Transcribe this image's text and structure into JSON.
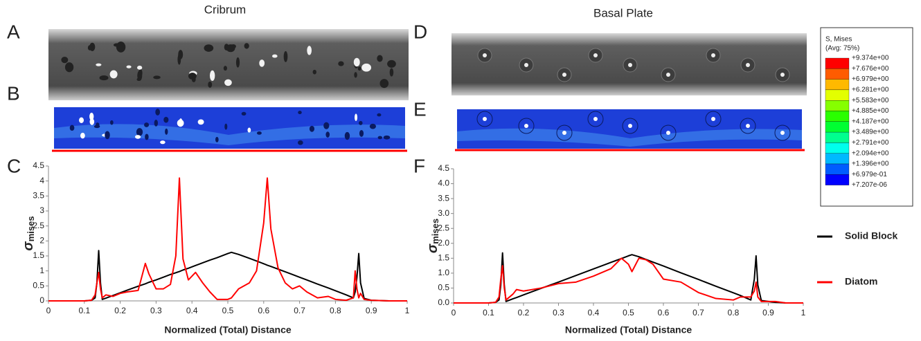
{
  "chart_data": [
    {
      "type": "line",
      "title": "Cribrum",
      "panels": [
        "A",
        "B",
        "C"
      ],
      "xlabel": "Normalized (Total) Distance",
      "ylabel": {
        "symbol": "σ",
        "subscript": "mises"
      },
      "xlim": [
        0,
        1
      ],
      "ylim": [
        0,
        4.5
      ],
      "xticks": [
        0,
        0.1,
        0.2,
        0.3,
        0.4,
        0.5,
        0.6,
        0.7,
        0.8,
        0.9,
        1
      ],
      "yticks": [
        0,
        0.5,
        1,
        1.5,
        2,
        2.5,
        3,
        3.5,
        4,
        4.5
      ],
      "x": [
        0,
        0.1,
        0.12,
        0.13,
        0.135,
        0.14,
        0.145,
        0.15,
        0.16,
        0.18,
        0.2,
        0.22,
        0.25,
        0.27,
        0.28,
        0.3,
        0.32,
        0.34,
        0.355,
        0.365,
        0.375,
        0.39,
        0.41,
        0.43,
        0.45,
        0.47,
        0.5,
        0.51,
        0.53,
        0.56,
        0.58,
        0.6,
        0.61,
        0.62,
        0.64,
        0.66,
        0.68,
        0.7,
        0.72,
        0.75,
        0.78,
        0.8,
        0.83,
        0.85,
        0.855,
        0.86,
        0.865,
        0.87,
        0.88,
        0.9,
        0.95,
        1.0
      ],
      "series": [
        {
          "color": "#000000",
          "values": [
            0,
            0,
            0.02,
            0.1,
            0.6,
            1.68,
            0.6,
            0.05,
            0.09,
            0.18,
            0.27,
            0.36,
            0.49,
            0.57,
            0.62,
            0.7,
            0.79,
            0.88,
            0.94,
            0.98,
            1.03,
            1.09,
            1.18,
            1.27,
            1.36,
            1.44,
            1.58,
            1.62,
            1.55,
            1.42,
            1.33,
            1.24,
            1.19,
            1.15,
            1.06,
            0.97,
            0.88,
            0.79,
            0.7,
            0.56,
            0.43,
            0.34,
            0.2,
            0.1,
            0.3,
            0.8,
            1.58,
            0.6,
            0.08,
            0.02,
            0,
            0
          ]
        },
        {
          "color": "#ff0000",
          "values": [
            0,
            0,
            0.02,
            0.2,
            0.6,
            0.95,
            0.4,
            0.1,
            0.2,
            0.15,
            0.25,
            0.3,
            0.35,
            1.25,
            0.9,
            0.4,
            0.4,
            0.55,
            1.5,
            4.1,
            1.4,
            0.7,
            0.95,
            0.6,
            0.3,
            0.05,
            0.05,
            0.1,
            0.4,
            0.6,
            1.0,
            2.6,
            4.1,
            2.4,
            1.1,
            0.6,
            0.4,
            0.5,
            0.3,
            0.1,
            0.15,
            0.05,
            0.02,
            0.1,
            1.0,
            0.4,
            0.1,
            0.25,
            0.05,
            0.02,
            0,
            0
          ]
        }
      ]
    },
    {
      "type": "line",
      "title": "Basal Plate",
      "panels": [
        "D",
        "E",
        "F"
      ],
      "xlabel": "Normalized (Total) Distance",
      "ylabel": {
        "symbol": "σ",
        "subscript": "mises"
      },
      "xlim": [
        0,
        1
      ],
      "ylim": [
        0,
        4.5
      ],
      "xticks": [
        0,
        0.1,
        0.2,
        0.3,
        0.4,
        0.5,
        0.6,
        0.7,
        0.8,
        0.9,
        1
      ],
      "yticks": [
        {
          "value": 0,
          "label": "0.0"
        },
        0.5,
        {
          "value": 1,
          "label": "1.0"
        },
        1.5,
        {
          "value": 2,
          "label": "2.0"
        },
        2.5,
        {
          "value": 3,
          "label": "3.0"
        },
        3.5,
        {
          "value": 4,
          "label": "4.0"
        },
        4.5
      ],
      "x": [
        0,
        0.1,
        0.12,
        0.13,
        0.135,
        0.14,
        0.145,
        0.15,
        0.17,
        0.18,
        0.2,
        0.25,
        0.3,
        0.35,
        0.4,
        0.45,
        0.48,
        0.5,
        0.51,
        0.53,
        0.55,
        0.57,
        0.6,
        0.65,
        0.7,
        0.75,
        0.8,
        0.82,
        0.85,
        0.86,
        0.865,
        0.87,
        0.88,
        0.92,
        0.95,
        1.0
      ],
      "series": [
        {
          "name": "Solid Block",
          "color": "#000000",
          "values": [
            0,
            0,
            0.02,
            0.1,
            0.6,
            1.68,
            0.6,
            0.05,
            0.14,
            0.18,
            0.27,
            0.49,
            0.7,
            0.92,
            1.14,
            1.36,
            1.49,
            1.58,
            1.62,
            1.55,
            1.46,
            1.37,
            1.24,
            1.01,
            0.79,
            0.56,
            0.34,
            0.25,
            0.1,
            0.8,
            1.58,
            0.6,
            0.08,
            0.02,
            0,
            0
          ]
        },
        {
          "name": "Diatom",
          "color": "#ff0000",
          "values": [
            0,
            0,
            0.02,
            0.2,
            0.8,
            1.25,
            0.5,
            0.1,
            0.3,
            0.45,
            0.4,
            0.5,
            0.65,
            0.7,
            0.9,
            1.15,
            1.5,
            1.3,
            1.05,
            1.5,
            1.45,
            1.3,
            0.8,
            0.7,
            0.35,
            0.15,
            0.1,
            0.2,
            0.2,
            0.4,
            0.7,
            0.2,
            0.05,
            0.05,
            0,
            0
          ]
        }
      ]
    }
  ],
  "colorbar": {
    "title": "S, Mises",
    "subtitle": "(Avg: 75%)",
    "labels": [
      "+9.374e+00",
      "+7.676e+00",
      "+6.979e+00",
      "+6.281e+00",
      "+5.583e+00",
      "+4.885e+00",
      "+4.187e+00",
      "+3.489e+00",
      "+2.791e+00",
      "+2.094e+00",
      "+1.396e+00",
      "+6.979e-01",
      "+7.207e-06"
    ],
    "colors": [
      "#ff0000",
      "#ff5c00",
      "#ffb900",
      "#e3ff00",
      "#86ff00",
      "#2aff00",
      "#00ff32",
      "#00ff8f",
      "#00ffec",
      "#00b9ff",
      "#005cff",
      "#0000ff"
    ]
  }
}
